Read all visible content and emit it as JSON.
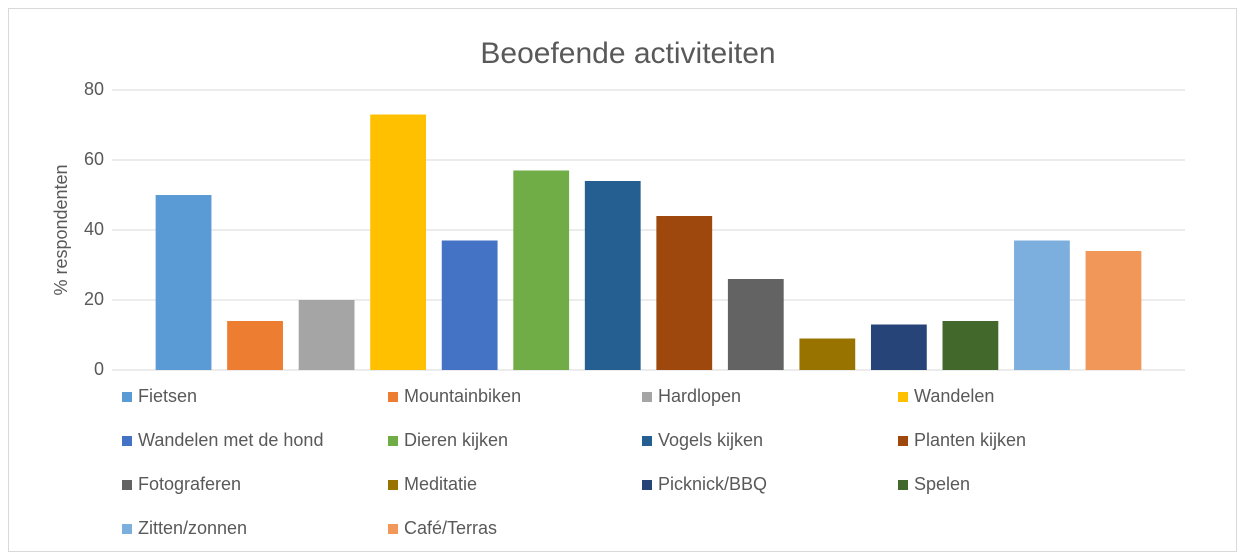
{
  "chart_data": {
    "type": "bar",
    "title": "Beoefende activiteiten",
    "y_label": "% respondenten",
    "series": [
      {
        "name": "Fietsen",
        "color": "#5b9bd5",
        "values": [
          50
        ]
      },
      {
        "name": "Mountainbiken",
        "color": "#ed7d31",
        "values": [
          14
        ]
      },
      {
        "name": "Hardlopen",
        "color": "#a5a5a5",
        "values": [
          20
        ]
      },
      {
        "name": "Wandelen",
        "color": "#ffc000",
        "values": [
          73
        ]
      },
      {
        "name": "Wandelen met de hond",
        "color": "#4472c4",
        "values": [
          37
        ]
      },
      {
        "name": "Dieren kijken",
        "color": "#70ad47",
        "values": [
          57
        ]
      },
      {
        "name": "Vogels kijken",
        "color": "#255e91",
        "values": [
          54
        ]
      },
      {
        "name": "Planten kijken",
        "color": "#9e480e",
        "values": [
          44
        ]
      },
      {
        "name": "Fotograferen",
        "color": "#636363",
        "values": [
          26
        ]
      },
      {
        "name": "Meditatie",
        "color": "#997300",
        "values": [
          9
        ]
      },
      {
        "name": "Picknick/BBQ",
        "color": "#264478",
        "values": [
          13
        ]
      },
      {
        "name": "Spelen",
        "color": "#43682b",
        "values": [
          14
        ]
      },
      {
        "name": "Zitten/zonnen",
        "color": "#7cafdd",
        "values": [
          37
        ]
      },
      {
        "name": "Café/Terras",
        "color": "#f1975a",
        "values": [
          34
        ]
      }
    ],
    "ylim": [
      0,
      80
    ],
    "yticks": [
      0,
      20,
      40,
      60,
      80
    ],
    "grid": true,
    "legend": "bottom"
  }
}
